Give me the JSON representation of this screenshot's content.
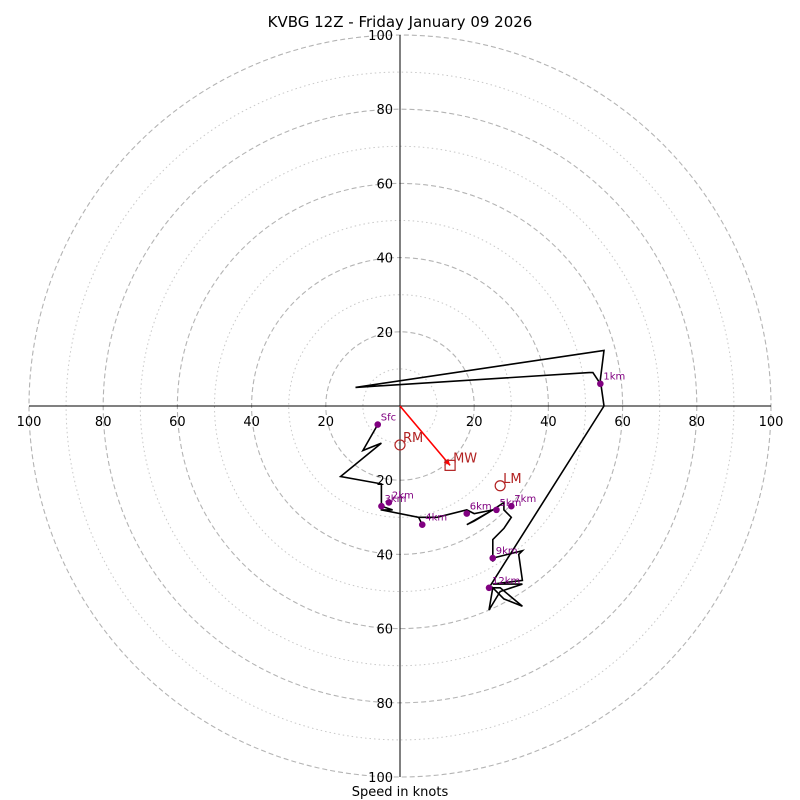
{
  "chart_data": {
    "type": "hodograph",
    "title": "KVBG 12Z - Friday January 09 2026",
    "xlabel": "Speed in knots",
    "range": [
      -100,
      100
    ],
    "major_rings": [
      20,
      40,
      60,
      80,
      100
    ],
    "minor_rings": [
      10,
      30,
      50,
      70,
      90
    ],
    "tick_labels": {
      "left": [
        "100",
        "80",
        "60",
        "40",
        "20"
      ],
      "right": [
        "20",
        "40",
        "60",
        "80",
        "100"
      ],
      "top": [
        "20",
        "40",
        "60",
        "80",
        "100"
      ],
      "bottom": [
        "20",
        "40",
        "60",
        "80",
        "100"
      ]
    },
    "tick_values": [
      20,
      40,
      60,
      80,
      100
    ],
    "trace": [
      [
        -6,
        -5
      ],
      [
        -10,
        -12
      ],
      [
        -5,
        -10
      ],
      [
        -16,
        -19
      ],
      [
        -5,
        -21
      ],
      [
        -5,
        -26
      ],
      [
        -5,
        -28
      ],
      [
        -2,
        -28
      ],
      [
        -5,
        -27
      ],
      [
        -5,
        -28
      ],
      [
        5,
        -30
      ],
      [
        6,
        -32
      ],
      [
        5,
        -30
      ],
      [
        10,
        -30
      ],
      [
        18,
        -28
      ],
      [
        20,
        -29
      ],
      [
        25,
        -28
      ],
      [
        18,
        -32
      ],
      [
        20,
        -31
      ],
      [
        25,
        -28
      ],
      [
        28,
        -26
      ],
      [
        28,
        -28
      ],
      [
        30,
        -30
      ],
      [
        28,
        -33
      ],
      [
        25,
        -36
      ],
      [
        25,
        -40
      ],
      [
        25,
        -42
      ],
      [
        25,
        -41
      ],
      [
        33,
        -39
      ],
      [
        32,
        -40
      ],
      [
        33,
        -47
      ],
      [
        25,
        -48
      ],
      [
        30,
        -48
      ],
      [
        33,
        -48
      ],
      [
        27,
        -50
      ],
      [
        24,
        -55
      ],
      [
        25,
        -49
      ],
      [
        28,
        -52
      ],
      [
        33,
        -54
      ],
      [
        27,
        -49
      ],
      [
        24,
        -49
      ],
      [
        55,
        0
      ],
      [
        54,
        7
      ],
      [
        55,
        15
      ],
      [
        -12,
        5
      ],
      [
        51,
        9
      ],
      [
        52,
        9
      ],
      [
        54,
        6
      ]
    ],
    "trace_color": "#000000",
    "height_markers": [
      {
        "label": "Sfc",
        "u": -6,
        "v": -5
      },
      {
        "label": "1km",
        "u": 54,
        "v": 6
      },
      {
        "label": "2km",
        "u": -3,
        "v": -26
      },
      {
        "label": "3km",
        "u": -5,
        "v": -27
      },
      {
        "label": "4km",
        "u": 6,
        "v": -32
      },
      {
        "label": "5km",
        "u": 26,
        "v": -28
      },
      {
        "label": "6km",
        "u": 18,
        "v": -29
      },
      {
        "label": "7km",
        "u": 30,
        "v": -27
      },
      {
        "label": "9km",
        "u": 25,
        "v": -41
      },
      {
        "label": "12km",
        "u": 24,
        "v": -49
      }
    ],
    "marker_color": "#800080",
    "vectors": [
      {
        "label": "RM",
        "u": 0,
        "v": -10.5,
        "symbol": "circle"
      },
      {
        "label": "LM",
        "u": 27,
        "v": -21.5,
        "symbol": "circle"
      },
      {
        "label": "MW",
        "u": 13.5,
        "v": -16,
        "symbol": "square"
      }
    ],
    "vector_color": "#b22222",
    "shear_arrow": {
      "from": [
        0,
        0
      ],
      "to": [
        13.5,
        -16
      ],
      "color": "#ff0000"
    }
  }
}
